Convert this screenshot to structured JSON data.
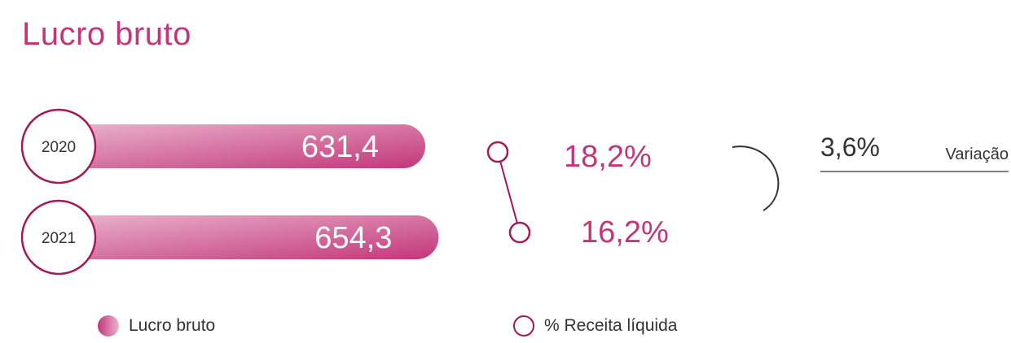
{
  "title": "Lucro bruto",
  "chart_data": {
    "type": "bar",
    "categories": [
      "2020",
      "2021"
    ],
    "series": [
      {
        "name": "Lucro bruto",
        "values": [
          631.4,
          654.3
        ],
        "labels": [
          "631,4",
          "654,3"
        ]
      },
      {
        "name": "% Receita líquida",
        "values": [
          18.2,
          16.2
        ],
        "labels": [
          "18,2%",
          "16,2%"
        ]
      }
    ],
    "variation": {
      "value": "3,6%",
      "label": "Variação"
    }
  },
  "legend": [
    {
      "label": "Lucro bruto",
      "style": "bar"
    },
    {
      "label": "% Receita líquida",
      "style": "ring"
    }
  ],
  "colors": {
    "accent": "#c3367a",
    "dark_accent": "#a4195a",
    "bar_start": "#c3367a",
    "bar_end": "#eab4cd",
    "text": "#333333"
  }
}
